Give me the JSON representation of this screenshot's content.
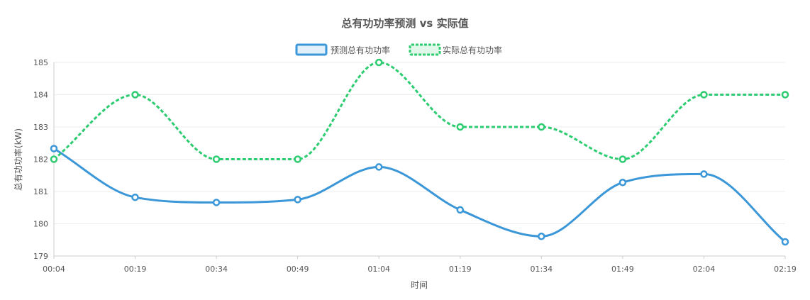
{
  "chart_data": {
    "type": "line",
    "title": "总有功功率预测 vs 实际值",
    "xlabel": "时间",
    "ylabel": "总有功功率(kW)",
    "ylim": [
      179,
      185
    ],
    "yticks": [
      "179",
      "180",
      "181",
      "182",
      "183",
      "184",
      "185"
    ],
    "categories": [
      "00:04",
      "00:19",
      "00:34",
      "00:49",
      "01:04",
      "01:19",
      "01:34",
      "01:49",
      "02:04",
      "02:19"
    ],
    "grid": true,
    "legend_position": "top-center",
    "series": [
      {
        "name": "预测总有功功率",
        "color": "#3b97d8",
        "line_style": "solid",
        "values": [
          182.33,
          180.82,
          180.66,
          180.75,
          181.76,
          180.43,
          179.61,
          181.28,
          181.54,
          179.44
        ]
      },
      {
        "name": "实际总有功功率",
        "color": "#2ecc71",
        "line_style": "dashed",
        "values": [
          182,
          184,
          182,
          182,
          185,
          183,
          183,
          182,
          184,
          184
        ]
      }
    ]
  }
}
